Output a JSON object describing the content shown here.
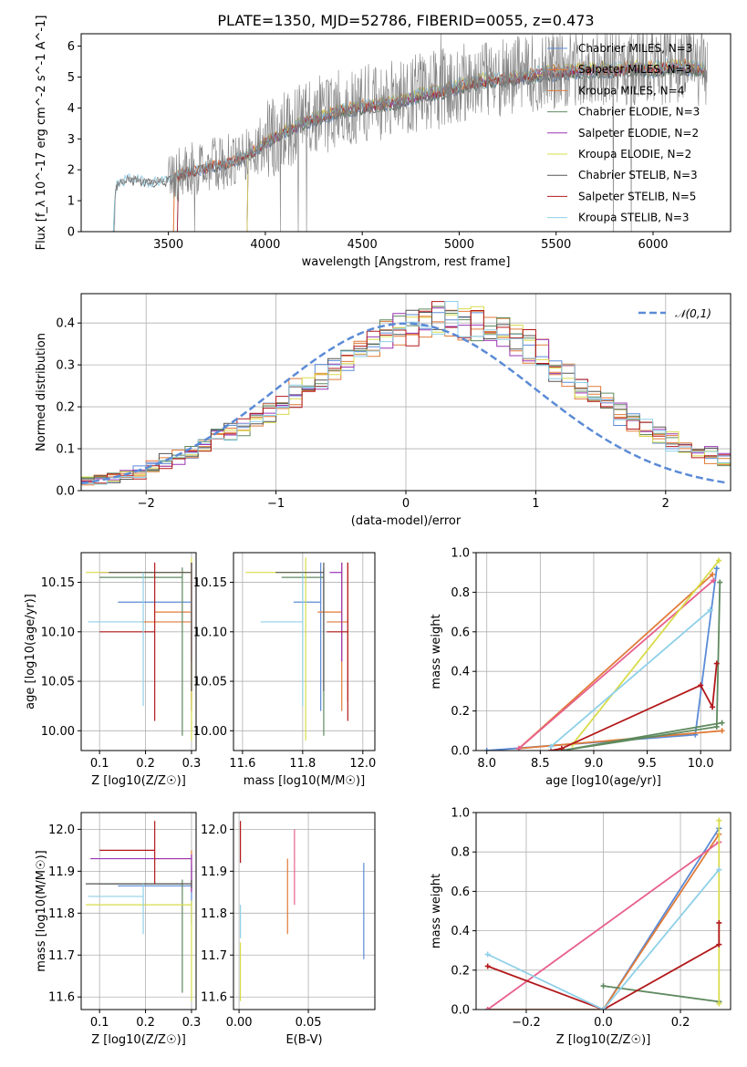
{
  "chart_data": [
    {
      "id": "spectrum",
      "type": "line",
      "title": "PLATE=1350, MJD=52786, FIBERID=0055, z=0.473",
      "xlabel": "wavelength [Angstrom, rest frame]",
      "ylabel": "Flux [f_λ 10^-17 erg cm^-2 s^-1 A^-1]",
      "xlim": [
        3050,
        6400
      ],
      "ylim": [
        0,
        6.4
      ],
      "xticks": [
        3500,
        4000,
        4500,
        5000,
        5500,
        6000
      ],
      "yticks": [
        0,
        1,
        2,
        3,
        4,
        5,
        6
      ],
      "grid": false,
      "legend_position": "right",
      "data_envelope": {
        "x": [
          3210,
          3230,
          3300,
          3400,
          3500,
          3600,
          3700,
          3800,
          3900,
          4000,
          4100,
          4200,
          4300,
          4400,
          4500,
          4600,
          4700,
          4800,
          4900,
          5000,
          5100,
          5200,
          5300,
          5400,
          5500,
          5600,
          5700,
          5800,
          5900,
          6000,
          6100,
          6200,
          6280
        ],
        "y": [
          0,
          1.5,
          1.75,
          1.6,
          1.7,
          1.95,
          2.1,
          2.25,
          2.5,
          2.9,
          3.3,
          3.6,
          3.8,
          4.0,
          4.1,
          4.2,
          4.3,
          4.5,
          4.6,
          4.8,
          4.95,
          5.0,
          5.05,
          5.2,
          5.25,
          5.3,
          5.35,
          5.3,
          5.4,
          5.35,
          5.45,
          5.4,
          5.3
        ]
      },
      "series": [
        {
          "name": "Chabrier MILES, N_SSP=3",
          "color": "#5b8bd6",
          "start": 3540
        },
        {
          "name": "Salpeter MILES, N_SSP=3",
          "color": "#e07b39",
          "start": 3520
        },
        {
          "name": "Kroupa MILES, N_SSP=4",
          "color": "#e07b39",
          "start": 3520
        },
        {
          "name": "Chabrier ELODIE, N_SSP=3",
          "color": "#5f8a5f",
          "start": 3900
        },
        {
          "name": "Salpeter ELODIE, N_SSP=2",
          "color": "#9b35b5",
          "start": 3900
        },
        {
          "name": "Kroupa ELODIE, N_SSP=2",
          "color": "#d8dc4a",
          "start": 3900
        },
        {
          "name": "Chabrier STELIB, N_SSP=3",
          "color": "#555555",
          "start": 3210
        },
        {
          "name": "Salpeter STELIB, N_SSP=5",
          "color": "#b3191b",
          "start": 3540
        },
        {
          "name": "Kroupa STELIB, N_SSP=3",
          "color": "#8fd0e8",
          "start": 3210
        }
      ]
    },
    {
      "id": "residuals",
      "type": "line",
      "xlabel": "(data-model)/error",
      "ylabel": "Normed distribution",
      "xlim": [
        -2.5,
        2.5
      ],
      "ylim": [
        0,
        0.47
      ],
      "xticks": [
        -2,
        -1,
        0,
        1,
        2
      ],
      "yticks": [
        0.0,
        0.1,
        0.2,
        0.3,
        0.4
      ],
      "grid": true,
      "legend_position": "top-right",
      "reference_curve": {
        "name": "𝒩(0,1)",
        "mu": 0,
        "sigma": 1,
        "color": "#5b8bd6"
      },
      "bin_width": 0.1,
      "base_hist": [
        0.018,
        0.022,
        0.032,
        0.04,
        0.046,
        0.055,
        0.068,
        0.082,
        0.098,
        0.112,
        0.126,
        0.142,
        0.158,
        0.174,
        0.19,
        0.212,
        0.232,
        0.25,
        0.27,
        0.288,
        0.312,
        0.332,
        0.352,
        0.37,
        0.385,
        0.395,
        0.402,
        0.405,
        0.402,
        0.398,
        0.392,
        0.384,
        0.372,
        0.355,
        0.34,
        0.318,
        0.296,
        0.272,
        0.25,
        0.228,
        0.205,
        0.185,
        0.165,
        0.148,
        0.13,
        0.118,
        0.104,
        0.094,
        0.084,
        0.074
      ],
      "series_colors": [
        "#5b8bd6",
        "#e07b39",
        "#e07b39",
        "#5f8a5f",
        "#9b35b5",
        "#d8dc4a",
        "#555555",
        "#b3191b",
        "#8fd0e8"
      ]
    },
    {
      "id": "age-vs-Z",
      "type": "scatter",
      "xlabel": "Z [log10(Z/Z☉)]",
      "ylabel": "age [log10(age/yr)]",
      "xlim": [
        0.06,
        0.31
      ],
      "ylim": [
        9.98,
        10.18
      ],
      "xticks": [
        0.1,
        0.2,
        0.3
      ],
      "yticks": [
        10.0,
        10.05,
        10.1,
        10.15
      ],
      "grid": true,
      "errorbars": [
        {
          "color": "#5b8bd6",
          "x": 0.3,
          "xerr": 0.16,
          "y": 10.13,
          "yerr_lo": 0.11,
          "yerr_hi": 0.04
        },
        {
          "color": "#e07b39",
          "x": 0.3,
          "xerr": 0.08,
          "y": 10.12,
          "yerr_lo": 0.1,
          "yerr_hi": 0.05
        },
        {
          "color": "#e07b39",
          "x": 0.3,
          "xerr": 0.11,
          "y": 10.11,
          "yerr_lo": 0.08,
          "yerr_hi": 0.06
        },
        {
          "color": "#5f8a5f",
          "x": 0.28,
          "xerr": 0.18,
          "y": 10.155,
          "yerr_lo": 0.16,
          "yerr_hi": 0.01
        },
        {
          "color": "#9b35b5",
          "x": 0.3,
          "xerr": 0.2,
          "y": 10.16,
          "yerr_lo": 0.09,
          "yerr_hi": 0.01
        },
        {
          "color": "#d8dc4a",
          "x": 0.3,
          "xerr": 0.23,
          "y": 10.16,
          "yerr_lo": 0.17,
          "yerr_hi": 0.015
        },
        {
          "color": "#555555",
          "x": 0.3,
          "xerr": 0.18,
          "y": 10.16,
          "yerr_lo": 0.12,
          "yerr_hi": 0.01
        },
        {
          "color": "#b3191b",
          "x": 0.22,
          "xerr": 0.12,
          "y": 10.1,
          "yerr_lo": 0.09,
          "yerr_hi": 0.07
        },
        {
          "color": "#8fd0e8",
          "x": 0.195,
          "xerr": 0.12,
          "y": 10.11,
          "yerr_lo": 0.085,
          "yerr_hi": 0.05
        }
      ]
    },
    {
      "id": "age-vs-mass",
      "type": "scatter",
      "xlabel": "mass [log10(M/M☉)]",
      "ylabel": "",
      "xlim": [
        11.57,
        12.04
      ],
      "ylim": [
        9.98,
        10.18
      ],
      "xticks": [
        11.6,
        11.8,
        12.0
      ],
      "yticks": [
        10.0,
        10.05,
        10.1,
        10.15
      ],
      "grid": true,
      "errorbars": [
        {
          "color": "#5b8bd6",
          "x": 11.86,
          "xerr": 0.09,
          "y": 10.13,
          "yerr_lo": 0.11,
          "yerr_hi": 0.04
        },
        {
          "color": "#e07b39",
          "x": 11.93,
          "xerr": 0.08,
          "y": 10.12,
          "yerr_lo": 0.1,
          "yerr_hi": 0.05
        },
        {
          "color": "#e07b39",
          "x": 11.95,
          "xerr": 0.07,
          "y": 10.11,
          "yerr_lo": 0.08,
          "yerr_hi": 0.06
        },
        {
          "color": "#5f8a5f",
          "x": 11.87,
          "xerr": 0.14,
          "y": 10.155,
          "yerr_lo": 0.16,
          "yerr_hi": 0.01
        },
        {
          "color": "#9b35b5",
          "x": 11.93,
          "xerr": 0.04,
          "y": 10.16,
          "yerr_lo": 0.09,
          "yerr_hi": 0.01
        },
        {
          "color": "#d8dc4a",
          "x": 11.81,
          "xerr": 0.2,
          "y": 10.16,
          "yerr_lo": 0.17,
          "yerr_hi": 0.015
        },
        {
          "color": "#555555",
          "x": 11.87,
          "xerr": 0.16,
          "y": 10.16,
          "yerr_lo": 0.12,
          "yerr_hi": 0.01
        },
        {
          "color": "#b3191b",
          "x": 11.95,
          "xerr": 0.07,
          "y": 10.1,
          "yerr_lo": 0.09,
          "yerr_hi": 0.07
        },
        {
          "color": "#8fd0e8",
          "x": 11.8,
          "xerr": 0.14,
          "y": 10.11,
          "yerr_lo": 0.085,
          "yerr_hi": 0.05
        }
      ]
    },
    {
      "id": "weight-vs-age",
      "type": "line",
      "xlabel": "age [log10(age/yr)]",
      "ylabel": "mass weight",
      "xlim": [
        7.9,
        10.28
      ],
      "ylim": [
        0,
        1.0
      ],
      "xticks": [
        8.0,
        8.5,
        9.0,
        9.5,
        10.0
      ],
      "yticks": [
        0.0,
        0.2,
        0.4,
        0.6,
        0.8,
        1.0
      ],
      "grid": true,
      "series": [
        {
          "color": "#5b8bd6",
          "x": [
            10.15,
            9.95,
            8.0
          ],
          "y": [
            0.92,
            0.08,
            0.0
          ]
        },
        {
          "color": "#e07b39",
          "x": [
            10.11,
            8.3,
            10.2
          ],
          "y": [
            0.89,
            0.01,
            0.1
          ]
        },
        {
          "color": "#e8608c",
          "x": [
            10.12,
            8.3
          ],
          "y": [
            0.86,
            0.01
          ]
        },
        {
          "color": "#5f8a5f",
          "x": [
            10.18,
            10.15,
            8.7,
            10.2
          ],
          "y": [
            0.85,
            0.12,
            0.0,
            0.14
          ]
        },
        {
          "color": "#d8dc4a",
          "x": [
            10.17,
            8.8,
            10.17
          ],
          "y": [
            0.96,
            0.03,
            0.96
          ]
        },
        {
          "color": "#b3191b",
          "x": [
            10.15,
            10.11,
            10.0,
            8.7,
            8.6
          ],
          "y": [
            0.44,
            0.22,
            0.33,
            0.01,
            0.0
          ]
        },
        {
          "color": "#8fd0e8",
          "x": [
            10.09,
            8.6,
            10.09
          ],
          "y": [
            0.71,
            0.02,
            0.71
          ]
        }
      ]
    },
    {
      "id": "mass-vs-Z",
      "type": "scatter",
      "xlabel": "Z [log10(Z/Z☉)]",
      "ylabel": "mass [log10(M/M☉)]",
      "xlim": [
        0.06,
        0.31
      ],
      "ylim": [
        11.57,
        12.04
      ],
      "xticks": [
        0.1,
        0.2,
        0.3
      ],
      "yticks": [
        11.6,
        11.7,
        11.8,
        11.9,
        12.0
      ],
      "grid": true,
      "errorbars": [
        {
          "color": "#5b8bd6",
          "x": 0.3,
          "xerr": 0.16,
          "y": 11.865,
          "yerr_lo": 0.09,
          "yerr_hi": 0.05
        },
        {
          "color": "#e07b39",
          "x": 0.3,
          "xerr": 0.08,
          "y": 11.93,
          "yerr_lo": 0.08,
          "yerr_hi": 0.02
        },
        {
          "color": "#5f8a5f",
          "x": 0.28,
          "xerr": 0.18,
          "y": 11.87,
          "yerr_lo": 0.26,
          "yerr_hi": 0.01
        },
        {
          "color": "#9b35b5",
          "x": 0.3,
          "xerr": 0.22,
          "y": 11.93,
          "yerr_lo": 0.08,
          "yerr_hi": 0.01
        },
        {
          "color": "#d8dc4a",
          "x": 0.3,
          "xerr": 0.23,
          "y": 11.82,
          "yerr_lo": 0.23,
          "yerr_hi": 0.01
        },
        {
          "color": "#555555",
          "x": 0.3,
          "xerr": 0.23,
          "y": 11.87,
          "yerr_lo": 0.01,
          "yerr_hi": 0.01
        },
        {
          "color": "#b3191b",
          "x": 0.22,
          "xerr": 0.12,
          "y": 11.95,
          "yerr_lo": 0.08,
          "yerr_hi": 0.07
        },
        {
          "color": "#8fd0e8",
          "x": 0.195,
          "xerr": 0.12,
          "y": 11.84,
          "yerr_lo": 0.09,
          "yerr_hi": 0.03
        }
      ]
    },
    {
      "id": "mass-vs-EBV",
      "type": "scatter",
      "xlabel": "E(B-V)",
      "ylabel": "",
      "xlim": [
        -0.004,
        0.098
      ],
      "ylim": [
        11.57,
        12.04
      ],
      "xticks": [
        0.0,
        0.05
      ],
      "yticks": [
        11.6,
        11.7,
        11.8,
        11.9,
        12.0
      ],
      "grid": true,
      "errorbars": [
        {
          "color": "#5b8bd6",
          "x": 0.09,
          "y": 11.81,
          "yerr_lo": 0.12,
          "yerr_hi": 0.11
        },
        {
          "color": "#e07b39",
          "x": 0.035,
          "y": 11.84,
          "yerr_lo": 0.09,
          "yerr_hi": 0.09
        },
        {
          "color": "#e8608c",
          "x": 0.04,
          "y": 11.91,
          "yerr_lo": 0.09,
          "yerr_hi": 0.09
        },
        {
          "color": "#b3191b",
          "x": 0.001,
          "y": 11.97,
          "yerr_lo": 0.05,
          "yerr_hi": 0.05
        },
        {
          "color": "#8fd0e8",
          "x": 0.001,
          "y": 11.78,
          "yerr_lo": 0.04,
          "yerr_hi": 0.04
        },
        {
          "color": "#d8dc4a",
          "x": 0.001,
          "y": 11.66,
          "yerr_lo": 0.07,
          "yerr_hi": 0.07
        }
      ]
    },
    {
      "id": "weight-vs-Z",
      "type": "line",
      "xlabel": "Z [log10(Z/Z☉)]",
      "ylabel": "mass weight",
      "xlim": [
        -0.33,
        0.33
      ],
      "ylim": [
        0,
        1.0
      ],
      "xticks": [
        -0.2,
        0.0,
        0.2
      ],
      "yticks": [
        0.0,
        0.2,
        0.4,
        0.6,
        0.8,
        1.0
      ],
      "grid": true,
      "series": [
        {
          "color": "#5b8bd6",
          "x": [
            0.3,
            0.0,
            -0.3
          ],
          "y": [
            0.92,
            0.0,
            0.0
          ]
        },
        {
          "color": "#e07b39",
          "x": [
            0.3,
            0.0,
            -0.3
          ],
          "y": [
            0.89,
            0.0,
            0.0
          ]
        },
        {
          "color": "#e8608c",
          "x": [
            0.3,
            -0.3
          ],
          "y": [
            0.85,
            0.0
          ]
        },
        {
          "color": "#5f8a5f",
          "x": [
            0.3,
            0.0,
            0.3
          ],
          "y": [
            0.04,
            0.12,
            0.04
          ]
        },
        {
          "color": "#d8dc4a",
          "x": [
            0.3,
            0.3
          ],
          "y": [
            0.96,
            0.03
          ]
        },
        {
          "color": "#b3191b",
          "x": [
            0.3,
            0.3,
            0.0,
            -0.3
          ],
          "y": [
            0.44,
            0.33,
            0.0,
            0.22
          ]
        },
        {
          "color": "#8fd0e8",
          "x": [
            0.3,
            0.0,
            -0.3
          ],
          "y": [
            0.71,
            0.0,
            0.28
          ]
        }
      ]
    }
  ]
}
